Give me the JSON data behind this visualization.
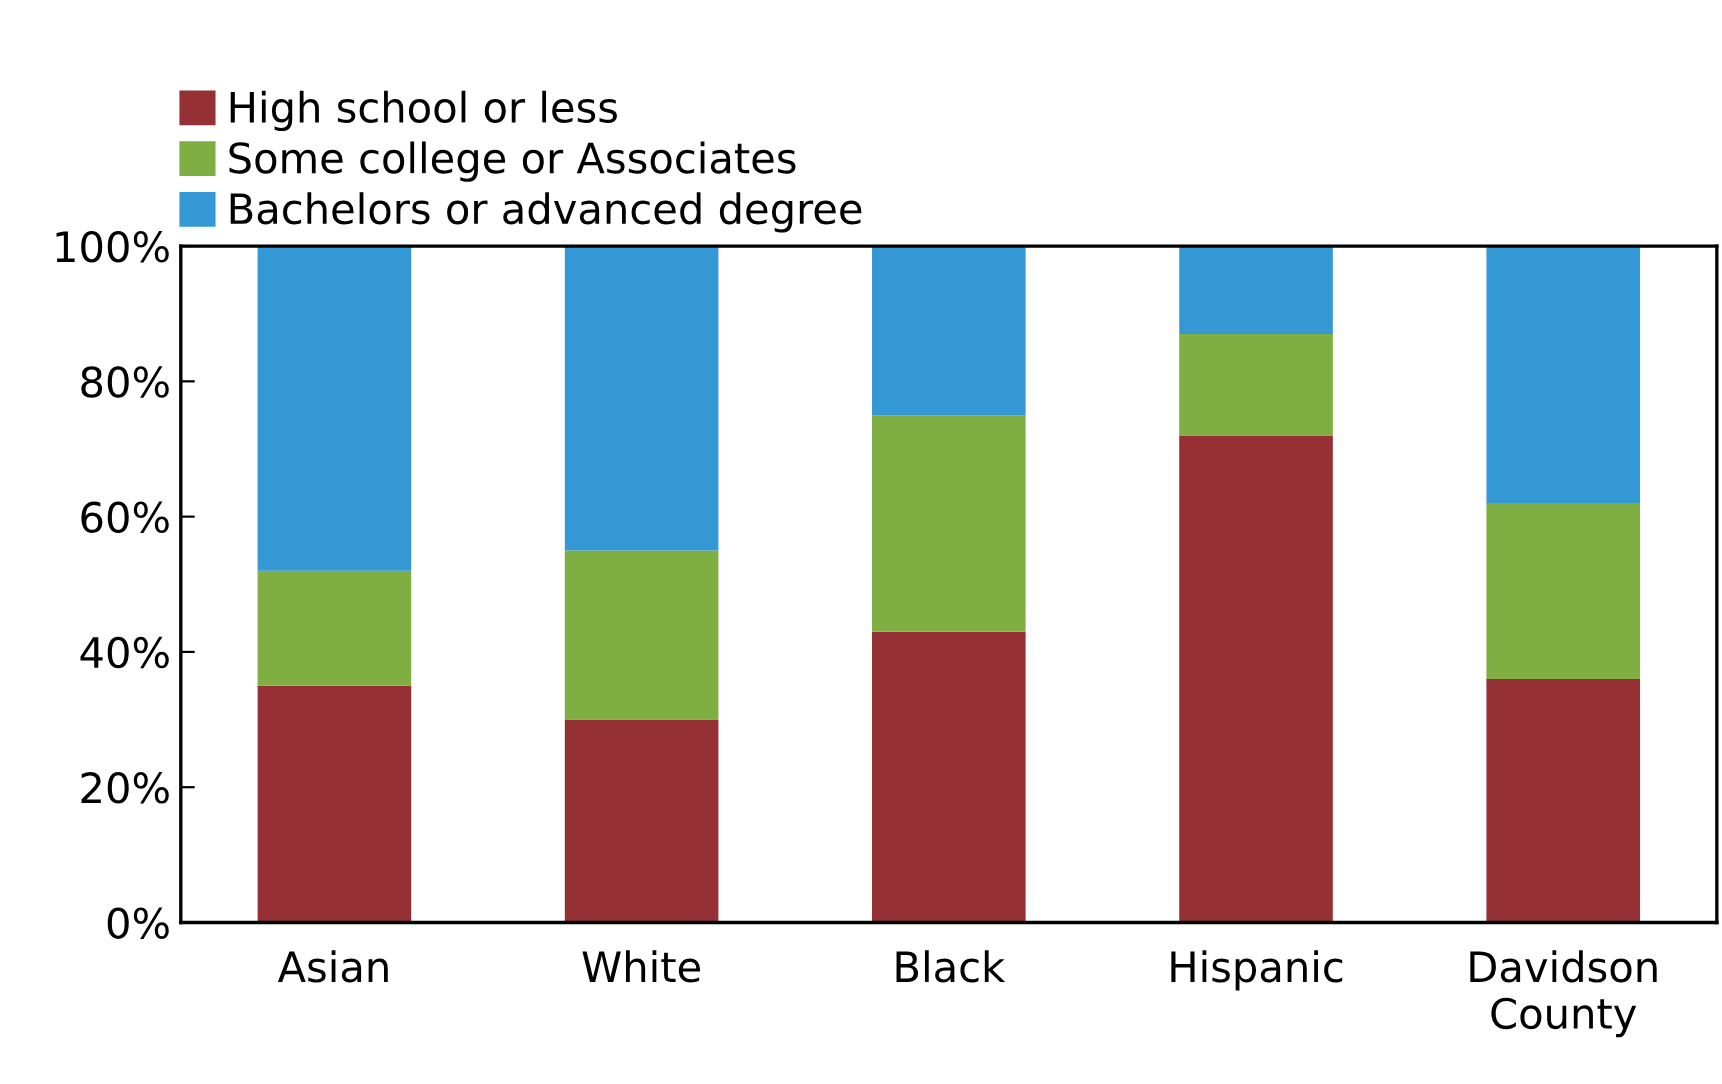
{
  "chart_data": {
    "type": "bar",
    "stacked": true,
    "categories": [
      "Asian",
      "White",
      "Black",
      "Hispanic",
      "Davidson\nCounty"
    ],
    "series": [
      {
        "name": "High school or less",
        "color": "#953135",
        "values": [
          35,
          30,
          43,
          72,
          36
        ]
      },
      {
        "name": "Some college or Associates",
        "color": "#7fae42",
        "values": [
          17,
          25,
          32,
          15,
          26
        ]
      },
      {
        "name": "Bachelors or advanced degree",
        "color": "#3498d5",
        "values": [
          48,
          45,
          25,
          13,
          38
        ]
      }
    ],
    "ylim": [
      0,
      100
    ],
    "yticks": [
      {
        "value": 0,
        "label": "0%"
      },
      {
        "value": 20,
        "label": "20%"
      },
      {
        "value": 40,
        "label": "40%"
      },
      {
        "value": 60,
        "label": "60%"
      },
      {
        "value": 80,
        "label": "80%"
      },
      {
        "value": 100,
        "label": "100%"
      }
    ],
    "grid": false,
    "legend": "top left"
  }
}
